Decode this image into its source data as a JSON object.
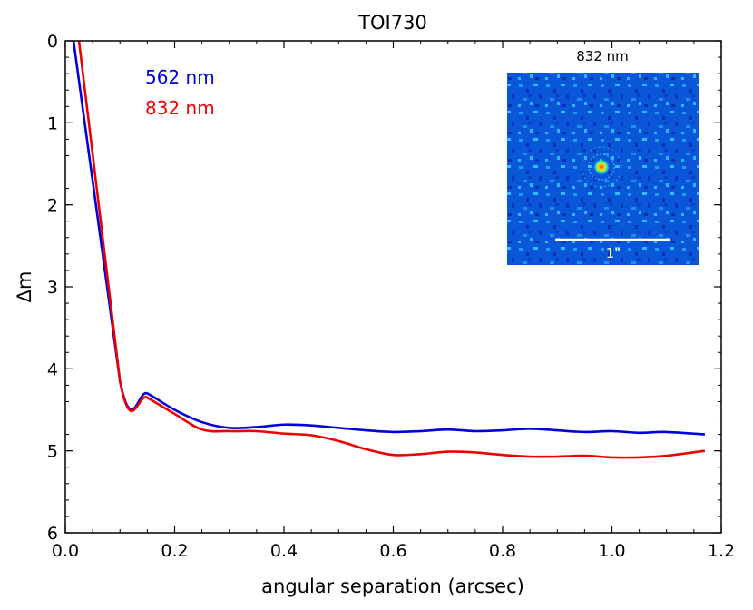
{
  "chart_data": {
    "type": "line",
    "title": "TOI730",
    "xlabel": "angular separation (arcsec)",
    "ylabel": "Δm",
    "xlim": [
      0.0,
      1.2
    ],
    "ylim": [
      6,
      0
    ],
    "y_inverted": true,
    "grid": false,
    "legend_placement": "top-left",
    "x_ticks": [
      "0.0",
      "0.2",
      "0.4",
      "0.6",
      "0.8",
      "1.0",
      "1.2"
    ],
    "y_ticks": [
      "0",
      "1",
      "2",
      "3",
      "4",
      "5",
      "6"
    ],
    "series": [
      {
        "name": "562 nm",
        "color": "#0000dd",
        "x": [
          0.015,
          0.1,
          0.15,
          0.2,
          0.25,
          0.3,
          0.35,
          0.4,
          0.45,
          0.5,
          0.55,
          0.6,
          0.65,
          0.7,
          0.75,
          0.8,
          0.85,
          0.9,
          0.95,
          1.0,
          1.05,
          1.1,
          1.17
        ],
        "y": [
          0.0,
          4.15,
          4.3,
          4.5,
          4.65,
          4.72,
          4.71,
          4.68,
          4.69,
          4.72,
          4.75,
          4.77,
          4.76,
          4.74,
          4.76,
          4.75,
          4.73,
          4.75,
          4.77,
          4.76,
          4.78,
          4.77,
          4.8
        ]
      },
      {
        "name": "832 nm",
        "color": "#ee0000",
        "x": [
          0.025,
          0.1,
          0.15,
          0.2,
          0.25,
          0.3,
          0.35,
          0.4,
          0.45,
          0.5,
          0.55,
          0.6,
          0.65,
          0.7,
          0.75,
          0.8,
          0.85,
          0.9,
          0.95,
          1.0,
          1.05,
          1.1,
          1.17
        ],
        "y": [
          0.0,
          4.15,
          4.35,
          4.55,
          4.74,
          4.76,
          4.76,
          4.79,
          4.81,
          4.88,
          4.98,
          5.05,
          5.04,
          5.01,
          5.02,
          5.05,
          5.07,
          5.07,
          5.06,
          5.08,
          5.08,
          5.06,
          5.0
        ]
      }
    ],
    "inset": {
      "title": "832 nm",
      "scale_bar_label": "1\"",
      "colormap": "jet",
      "background_color": "#0a56d8"
    }
  }
}
